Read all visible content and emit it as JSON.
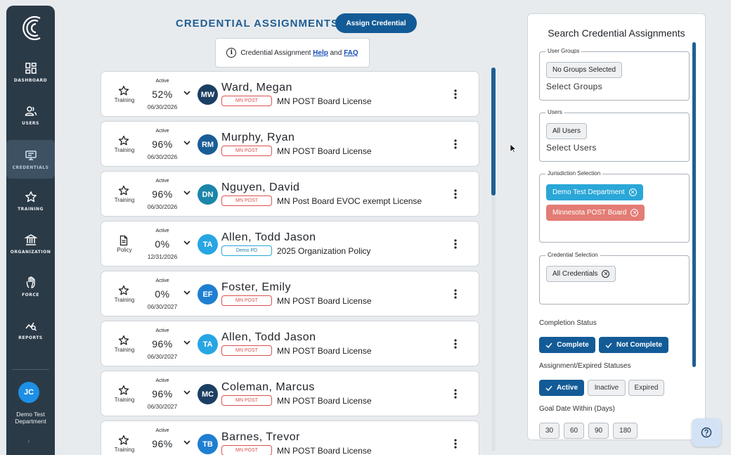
{
  "sidebar": {
    "items": [
      {
        "key": "dashboard",
        "label": "DASHBOARD",
        "icon": "dashboard-icon"
      },
      {
        "key": "users",
        "label": "USERS",
        "icon": "users-icon"
      },
      {
        "key": "credentials",
        "label": "CREDENTIALS",
        "icon": "credentials-icon",
        "active": true
      },
      {
        "key": "training",
        "label": "TRAINING",
        "icon": "star-icon"
      },
      {
        "key": "organization",
        "label": "ORGANIZATION",
        "icon": "building-icon"
      },
      {
        "key": "force",
        "label": "FORCE",
        "icon": "hand-icon"
      },
      {
        "key": "reports",
        "label": "REPORTS",
        "icon": "reports-icon"
      }
    ],
    "user": {
      "initials": "JC",
      "department": "Demo Test Department"
    },
    "expand_glyph": "›"
  },
  "header": {
    "title": "CREDENTIAL ASSIGNMENTS",
    "assign_label": "Assign Credential",
    "info": {
      "prefix": "Credential Assignment",
      "help": "Help",
      "and": "and",
      "faq": "FAQ"
    }
  },
  "assignments": [
    {
      "type": "Training",
      "status": "Active",
      "pct": "52%",
      "date": "06/30/2026",
      "initials": "MW",
      "avatar_color": "#1b3f63",
      "name": "Ward, Megan",
      "badge": "MN POST",
      "badge_kind": "post",
      "credential": "MN POST Board License"
    },
    {
      "type": "Training",
      "status": "Active",
      "pct": "96%",
      "date": "06/30/2026",
      "initials": "RM",
      "avatar_color": "#1a5d96",
      "name": "Murphy, Ryan",
      "badge": "MN POST",
      "badge_kind": "post",
      "credential": "MN POST Board License"
    },
    {
      "type": "Training",
      "status": "Active",
      "pct": "96%",
      "date": "06/30/2026",
      "initials": "DN",
      "avatar_color": "#1b86a9",
      "name": "Nguyen, David",
      "badge": "MN POST",
      "badge_kind": "post",
      "credential": "MN Post Board EVOC exempt License"
    },
    {
      "type": "Policy",
      "status": "Active",
      "pct": "0%",
      "date": "12/31/2026",
      "initials": "TA",
      "avatar_color": "#27a6e3",
      "name": "Allen, Todd Jason",
      "badge": "Demo PD",
      "badge_kind": "pd",
      "credential": "2025 Organization Policy"
    },
    {
      "type": "Training",
      "status": "Active",
      "pct": "0%",
      "date": "06/30/2027",
      "initials": "EF",
      "avatar_color": "#1e7fd1",
      "name": "Foster, Emily",
      "badge": "MN POST",
      "badge_kind": "post",
      "credential": "MN POST Board License"
    },
    {
      "type": "Training",
      "status": "Active",
      "pct": "96%",
      "date": "06/30/2027",
      "initials": "TA",
      "avatar_color": "#27a6e3",
      "name": "Allen, Todd Jason",
      "badge": "MN POST",
      "badge_kind": "post",
      "credential": "MN POST Board License"
    },
    {
      "type": "Training",
      "status": "Active",
      "pct": "96%",
      "date": "06/30/2027",
      "initials": "MC",
      "avatar_color": "#1b3f63",
      "name": "Coleman, Marcus",
      "badge": "MN POST",
      "badge_kind": "post",
      "credential": "MN POST Board License"
    },
    {
      "type": "Training",
      "status": "Active",
      "pct": "96%",
      "date": "",
      "initials": "TB",
      "avatar_color": "#1e7fd1",
      "name": "Barnes, Trevor",
      "badge": "MN POST",
      "badge_kind": "post",
      "credential": "MN POST Board License"
    }
  ],
  "search": {
    "title": "Search Credential Assignments",
    "user_groups": {
      "label": "User Groups",
      "chip": "No Groups Selected",
      "placeholder": "Select Groups"
    },
    "users": {
      "label": "Users",
      "chip": "All Users",
      "placeholder": "Select Users"
    },
    "jurisdiction": {
      "label": "Jurisdiction Selection",
      "chips": [
        "Demo Test Department",
        "Minnesota POST Board"
      ],
      "chip_colors": [
        "#2aa7d8",
        "#e37c74"
      ]
    },
    "credential": {
      "label": "Credential Selection",
      "chip": "All Credentials"
    },
    "completion": {
      "label": "Completion Status",
      "complete": "Complete",
      "not_complete": "Not Complete"
    },
    "assignment_status": {
      "label": "Assignment/Expired Statuses",
      "active": "Active",
      "inactive": "Inactive",
      "expired": "Expired"
    },
    "goal": {
      "label": "Goal Date Within (Days)",
      "options": [
        "30",
        "60",
        "90",
        "180"
      ]
    }
  },
  "colors": {
    "primary": "#135b97",
    "sidebar": "#2b3a47",
    "post_red": "#d9534f",
    "pd_blue": "#2aa7d8"
  }
}
